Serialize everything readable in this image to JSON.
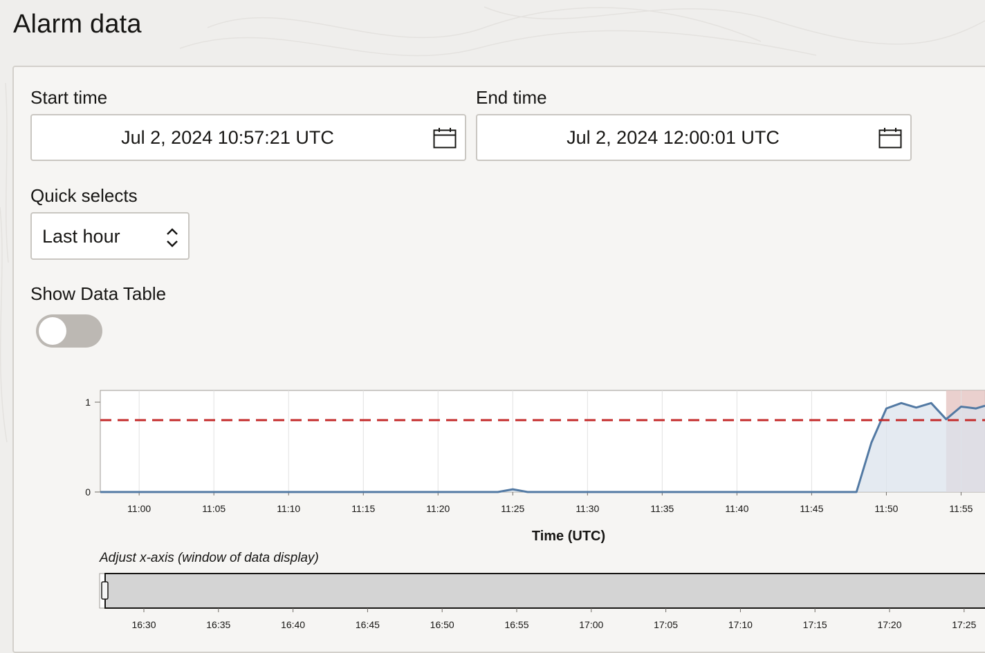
{
  "page": {
    "title": "Alarm data"
  },
  "form": {
    "start_label": "Start time",
    "start_value": "Jul 2, 2024 10:57:21 UTC",
    "end_label": "End time",
    "end_value": "Jul 2, 2024 12:00:01 UTC",
    "quick_label": "Quick selects",
    "quick_value": "Last hour",
    "table_label": "Show Data Table",
    "table_toggle_on": false
  },
  "icons": {
    "calendar": "calendar-icon",
    "select": "chevron-up-down-icon"
  },
  "colors": {
    "line": "#5279a3",
    "area": "#dbe3ec",
    "threshold": "#c42b2b",
    "alarm_band": "#e6c8c6",
    "brush": "#d4d4d4"
  },
  "chart_data": [
    {
      "type": "area",
      "xlabel": "Time (UTC)",
      "x_ticks": [
        "11:00",
        "11:05",
        "11:10",
        "11:15",
        "11:20",
        "11:25",
        "11:30",
        "11:35",
        "11:40",
        "11:45",
        "11:50",
        "11:55"
      ],
      "y_ticks": [
        "0",
        "1"
      ],
      "ylim": [
        0,
        1.05
      ],
      "xlim_minutes": [
        57.4,
        116.6
      ],
      "threshold": 0.8,
      "alarm_band_start_minutes": 114.0,
      "series": [
        {
          "x_minutes": [
            57.4,
            84.0,
            85.0,
            86.0,
            108.0,
            109.0,
            110.0,
            111.0,
            112.0,
            113.0,
            114.0,
            115.0,
            116.0,
            116.6
          ],
          "values": [
            0.0,
            0.0,
            0.03,
            0.0,
            0.0,
            0.55,
            0.93,
            0.99,
            0.94,
            0.99,
            0.81,
            0.95,
            0.93,
            0.96
          ]
        }
      ]
    },
    {
      "type": "brush",
      "title": "Adjust x-axis (window of data display)",
      "x_ticks": [
        "16:30",
        "16:35",
        "16:40",
        "16:45",
        "16:50",
        "16:55",
        "17:00",
        "17:05",
        "17:10",
        "17:15",
        "17:20",
        "17:25"
      ]
    }
  ]
}
